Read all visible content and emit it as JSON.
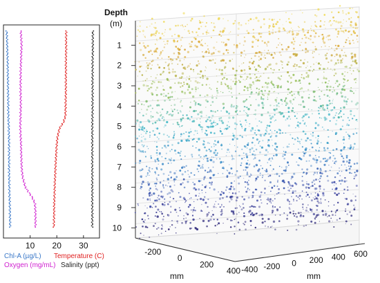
{
  "chart_data": [
    {
      "type": "line",
      "xticks": [
        "10",
        "20",
        "30"
      ],
      "xlim": [
        0,
        36
      ],
      "depth_lim": [
        0,
        10.5
      ],
      "legend": [
        {
          "label": "Chl-A (µg/L)",
          "color": "#3a78c8"
        },
        {
          "label": "Temperature (C)",
          "color": "#e02020"
        },
        {
          "label": "Oxygen (mg/mL)",
          "color": "#d020d0"
        },
        {
          "label": "Salinity (ppt)",
          "color": "#222222"
        }
      ],
      "series": [
        {
          "name": "Chl-A (µg/L)",
          "color": "#3a78c8",
          "depth": [
            0.3,
            1,
            2,
            3,
            4,
            4.8,
            5,
            6,
            7,
            8,
            8.6,
            9,
            10
          ],
          "values": [
            1.2,
            1.4,
            1.6,
            1.7,
            1.8,
            1.9,
            2.0,
            2.1,
            2.1,
            2.2,
            2.3,
            2.4,
            2.5
          ]
        },
        {
          "name": "Temperature (C)",
          "color": "#e02020",
          "depth": [
            0.3,
            1,
            2,
            3,
            4,
            4.5,
            4.8,
            5.1,
            5.5,
            6,
            7,
            8,
            9,
            10
          ],
          "values": [
            23.5,
            23.5,
            23.4,
            23.4,
            23.3,
            23.2,
            22.5,
            21.0,
            20.3,
            19.9,
            19.5,
            19.2,
            19.0,
            18.9
          ]
        },
        {
          "name": "Oxygen (mg/mL)",
          "color": "#d020d0",
          "depth": [
            0.3,
            1,
            2,
            3,
            4,
            5,
            6,
            7,
            7.5,
            8,
            8.5,
            8.8,
            9.2,
            10
          ],
          "values": [
            6.5,
            6.8,
            6.5,
            6.4,
            6.5,
            6.3,
            6.6,
            6.8,
            7.2,
            8.2,
            10.8,
            11.8,
            12.0,
            12.0
          ]
        },
        {
          "name": "Salinity (ppt)",
          "color": "#222222",
          "depth": [
            0.3,
            1,
            2,
            3,
            4,
            5,
            6,
            7,
            8,
            9,
            10
          ],
          "values": [
            33.5,
            33.5,
            33.4,
            33.4,
            33.4,
            33.3,
            33.3,
            33.3,
            33.3,
            33.3,
            33.3
          ]
        }
      ]
    },
    {
      "type": "scatter",
      "axis_title": "Depth",
      "axis_unit": "(m)",
      "depth_ticks": [
        "1",
        "2",
        "3",
        "4",
        "5",
        "6",
        "7",
        "8",
        "9",
        "10"
      ],
      "depth_lim": [
        0,
        10.5
      ],
      "x_ticks": [
        "-200",
        "0",
        "200",
        "400"
      ],
      "x_label": "mm",
      "y_ticks": [
        "-400",
        "-200",
        "0",
        "200",
        "400",
        "600"
      ],
      "y_label": "mm",
      "color_scale": [
        "#f3e35a",
        "#d9a538",
        "#96c05a",
        "#39b4c6",
        "#3a86c8",
        "#3f4aa8",
        "#2a1f6c"
      ],
      "point_density": "dense",
      "grid": true
    }
  ]
}
